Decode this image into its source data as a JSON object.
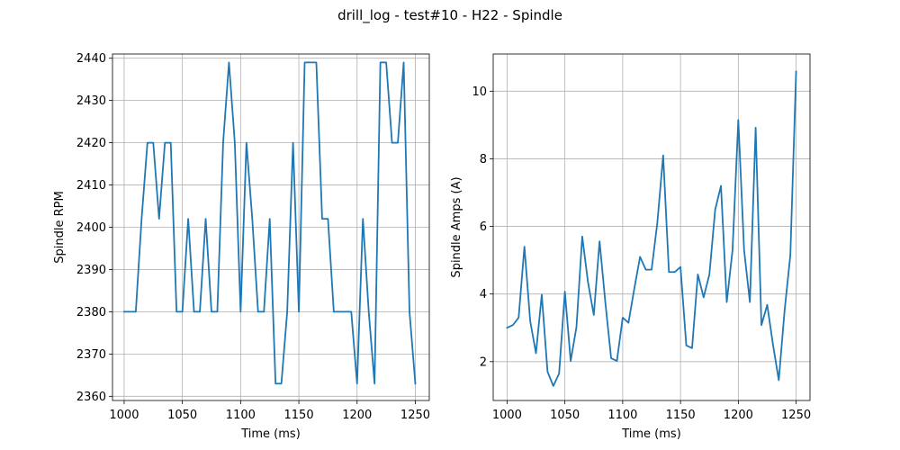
{
  "figure_title": "drill_log - test#10 - H22 - Spindle",
  "colors": {
    "series": "#1f77b4",
    "grid": "#b0b0b0"
  },
  "chart_data": [
    {
      "type": "line",
      "xlabel": "Time (ms)",
      "ylabel": "Spindle RPM",
      "xlim": [
        990,
        1262
      ],
      "ylim": [
        2359,
        2441
      ],
      "xticks": [
        1000,
        1050,
        1100,
        1150,
        1200,
        1250
      ],
      "yticks": [
        2360,
        2370,
        2380,
        2390,
        2400,
        2410,
        2420,
        2430,
        2440
      ],
      "grid": true,
      "series": [
        {
          "x": [
            1000,
            1005,
            1010,
            1015,
            1020,
            1025,
            1030,
            1035,
            1040,
            1045,
            1050,
            1055,
            1060,
            1065,
            1070,
            1075,
            1080,
            1085,
            1090,
            1095,
            1100,
            1105,
            1110,
            1115,
            1120,
            1125,
            1130,
            1135,
            1140,
            1145,
            1150,
            1155,
            1160,
            1165,
            1170,
            1175,
            1180,
            1185,
            1190,
            1195,
            1200,
            1205,
            1210,
            1215,
            1220,
            1225,
            1230,
            1235,
            1240,
            1245,
            1250
          ],
          "y": [
            2380,
            2380,
            2380,
            2402,
            2420,
            2420,
            2402,
            2420,
            2420,
            2380,
            2380,
            2402,
            2380,
            2380,
            2402,
            2380,
            2380,
            2420,
            2439,
            2420,
            2380,
            2420,
            2402,
            2380,
            2380,
            2402,
            2363,
            2363,
            2380,
            2420,
            2380,
            2439,
            2439,
            2439,
            2402,
            2402,
            2380,
            2380,
            2380,
            2380,
            2363,
            2402,
            2380,
            2363,
            2439,
            2439,
            2420,
            2420,
            2439,
            2380,
            2363
          ]
        }
      ]
    },
    {
      "type": "line",
      "xlabel": "Time (ms)",
      "ylabel": "Spindle Amps (A)",
      "xlim": [
        988,
        1262
      ],
      "ylim": [
        0.85,
        11.1
      ],
      "xticks": [
        1000,
        1050,
        1100,
        1150,
        1200,
        1250
      ],
      "yticks": [
        2,
        4,
        6,
        8,
        10
      ],
      "grid": true,
      "series": [
        {
          "x": [
            1000,
            1005,
            1010,
            1015,
            1020,
            1025,
            1030,
            1035,
            1040,
            1045,
            1050,
            1055,
            1060,
            1065,
            1070,
            1075,
            1080,
            1085,
            1090,
            1095,
            1100,
            1105,
            1110,
            1115,
            1120,
            1125,
            1130,
            1135,
            1140,
            1145,
            1150,
            1155,
            1160,
            1165,
            1170,
            1175,
            1180,
            1185,
            1190,
            1195,
            1200,
            1205,
            1210,
            1215,
            1220,
            1225,
            1230,
            1235,
            1240,
            1245,
            1250
          ],
          "y": [
            3.0,
            3.08,
            3.3,
            5.4,
            3.2,
            2.25,
            3.98,
            1.7,
            1.28,
            1.65,
            4.07,
            2.02,
            3.02,
            5.7,
            4.35,
            3.38,
            5.56,
            3.75,
            2.1,
            2.02,
            3.3,
            3.15,
            4.15,
            5.1,
            4.72,
            4.72,
            6.12,
            8.1,
            4.65,
            4.65,
            4.8,
            2.48,
            2.4,
            4.58,
            3.9,
            4.58,
            6.5,
            7.2,
            3.76,
            5.3,
            9.15,
            5.3,
            3.76,
            8.92,
            3.08,
            3.68,
            2.5,
            1.45,
            3.5,
            5.15,
            10.58
          ]
        }
      ]
    }
  ]
}
